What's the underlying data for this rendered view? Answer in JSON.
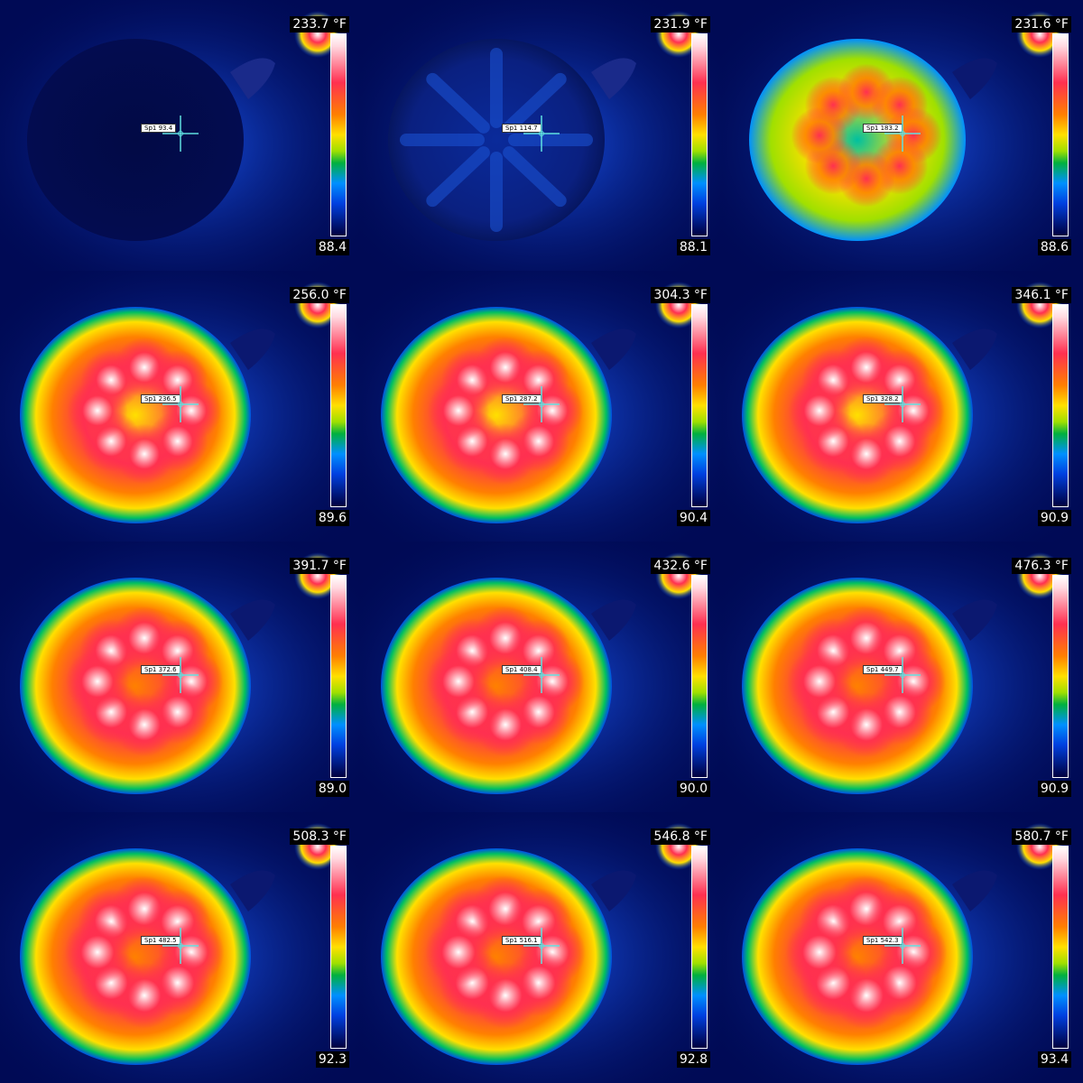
{
  "unit": "°F",
  "colors": {
    "background": "#000a55",
    "cold": "#0050e8",
    "warm": "#ffe000",
    "hot": "#ff3050",
    "hottest": "#ffffff",
    "crosshair": "#60e0e0"
  },
  "frames": [
    {
      "max": "233.7 °F",
      "min": "88.4",
      "spot": "Sp1 93.4",
      "heat": 0.0
    },
    {
      "max": "231.9 °F",
      "min": "88.1",
      "spot": "Sp1 114.7",
      "heat": 0.1
    },
    {
      "max": "231.6 °F",
      "min": "88.6",
      "spot": "Sp1 183.2",
      "heat": 0.35
    },
    {
      "max": "256.0 °F",
      "min": "89.6",
      "spot": "Sp1 236.5",
      "heat": 0.55
    },
    {
      "max": "304.3 °F",
      "min": "90.4",
      "spot": "Sp1 287.2",
      "heat": 0.62
    },
    {
      "max": "346.1 °F",
      "min": "90.9",
      "spot": "Sp1 328.2",
      "heat": 0.66
    },
    {
      "max": "391.7 °F",
      "min": "89.0",
      "spot": "Sp1 372.6",
      "heat": 0.72
    },
    {
      "max": "432.6 °F",
      "min": "90.0",
      "spot": "Sp1 408.4",
      "heat": 0.76
    },
    {
      "max": "476.3 °F",
      "min": "90.9",
      "spot": "Sp1 449.7",
      "heat": 0.8
    },
    {
      "max": "508.3 °F",
      "min": "92.3",
      "spot": "Sp1 482.5",
      "heat": 0.86
    },
    {
      "max": "546.8 °F",
      "min": "92.8",
      "spot": "Sp1 516.1",
      "heat": 0.9
    },
    {
      "max": "580.7 °F",
      "min": "93.4",
      "spot": "Sp1 542.3",
      "heat": 0.95
    }
  ]
}
